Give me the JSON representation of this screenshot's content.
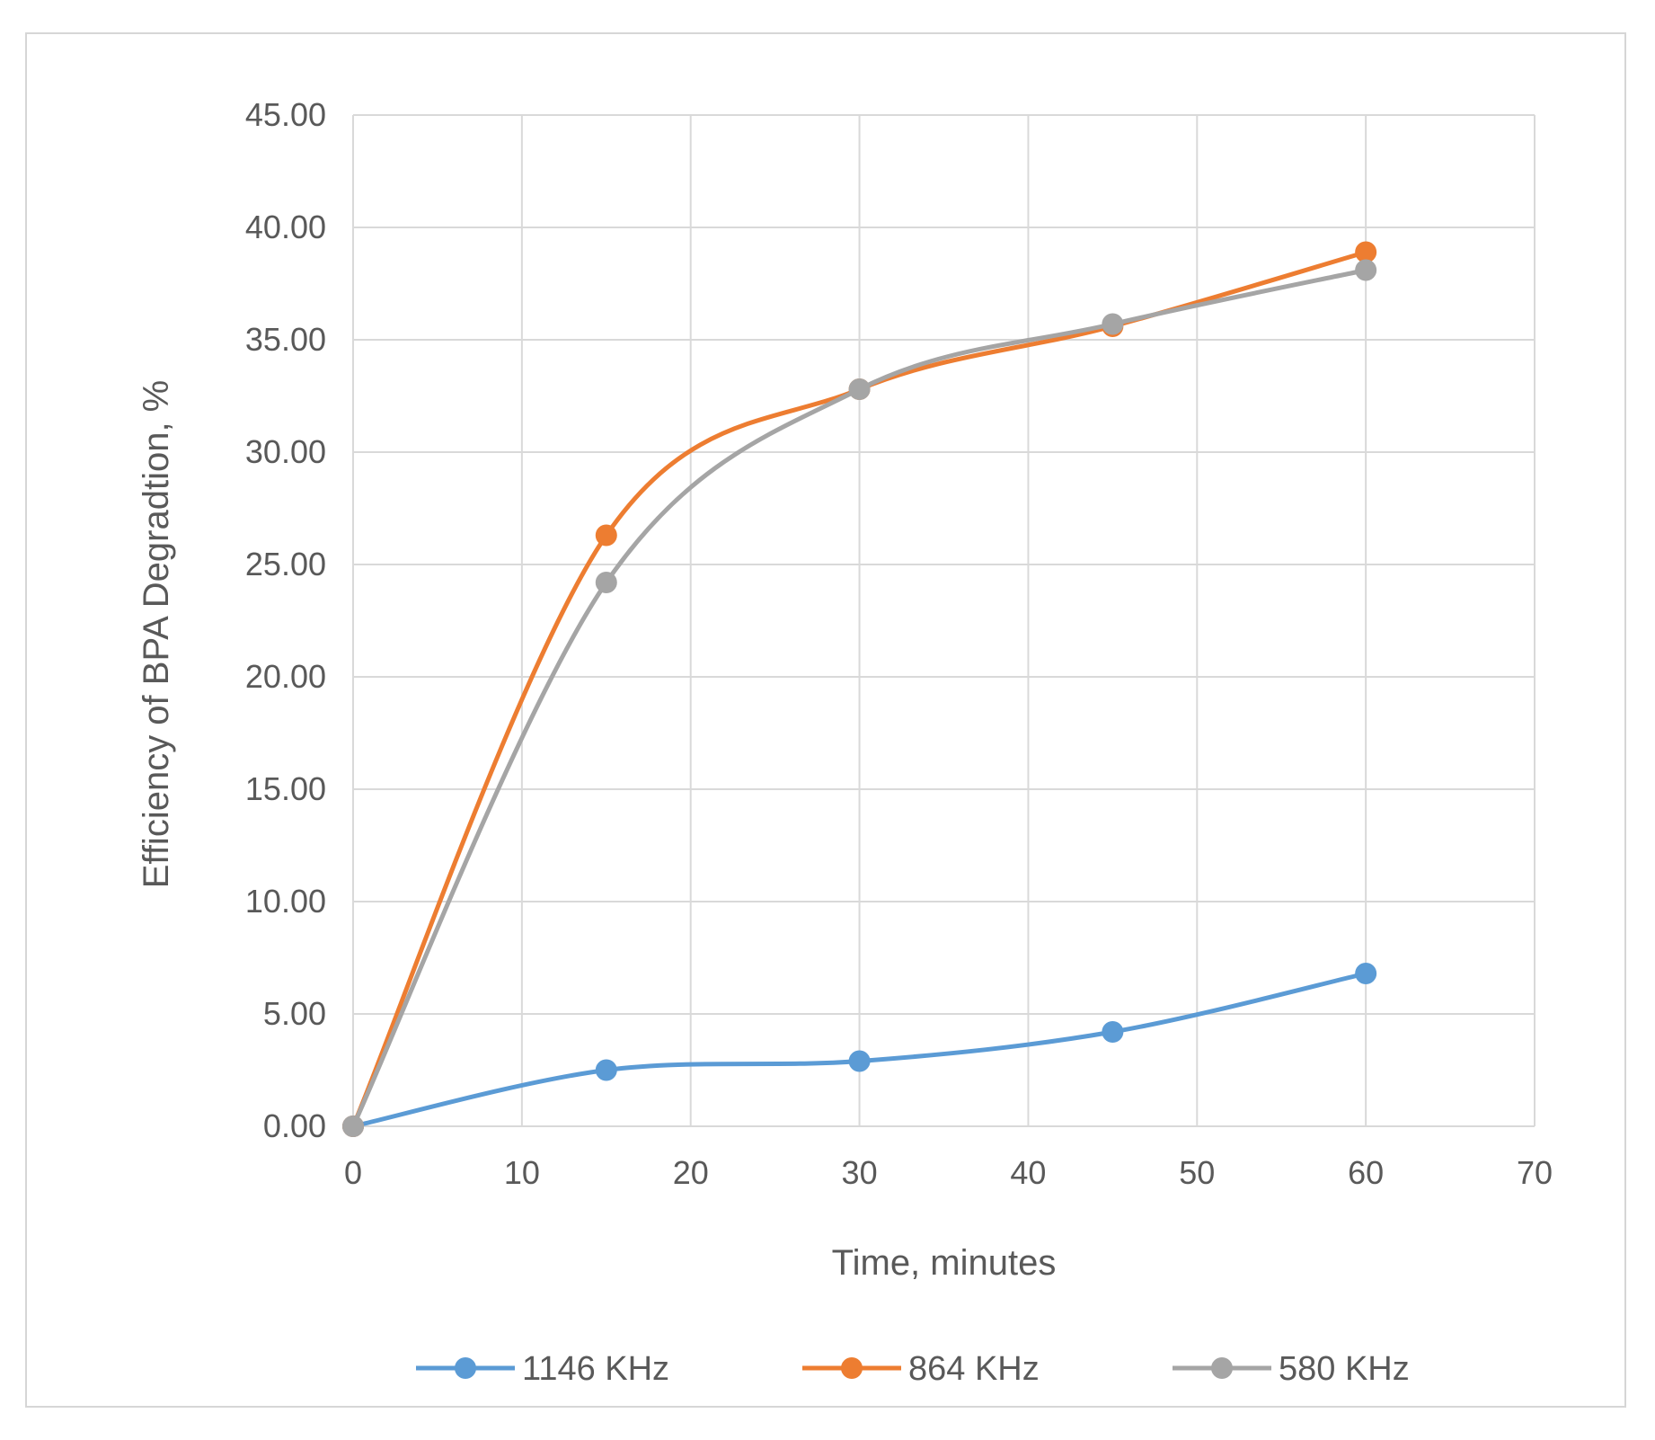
{
  "chart_data": {
    "type": "line",
    "title": "",
    "xlabel": "Time, minutes",
    "ylabel": "Efficiency of BPA Degradtion, %",
    "xlim": [
      0,
      70
    ],
    "ylim": [
      0,
      45
    ],
    "xticks": [
      0,
      10,
      20,
      30,
      40,
      50,
      60,
      70
    ],
    "yticks": [
      0,
      5,
      10,
      15,
      20,
      25,
      30,
      35,
      40,
      45
    ],
    "xtick_labels": [
      "0",
      "10",
      "20",
      "30",
      "40",
      "50",
      "60",
      "70"
    ],
    "ytick_labels": [
      "0.00",
      "5.00",
      "10.00",
      "15.00",
      "20.00",
      "25.00",
      "30.00",
      "35.00",
      "40.00",
      "45.00"
    ],
    "grid": true,
    "smooth": true,
    "legend_position": "bottom",
    "series": [
      {
        "name": "1146 KHz",
        "color": "#5b9bd5",
        "x": [
          0,
          15,
          30,
          45,
          60
        ],
        "y": [
          0.0,
          2.5,
          2.9,
          4.2,
          6.8
        ]
      },
      {
        "name": "864 KHz",
        "color": "#ed7d31",
        "x": [
          0,
          15,
          30,
          45,
          60
        ],
        "y": [
          0.0,
          26.3,
          32.8,
          35.6,
          38.9
        ]
      },
      {
        "name": "580 KHz",
        "color": "#a5a5a5",
        "x": [
          0,
          15,
          30,
          45,
          60
        ],
        "y": [
          0.0,
          24.2,
          32.8,
          35.7,
          38.1
        ]
      }
    ]
  }
}
